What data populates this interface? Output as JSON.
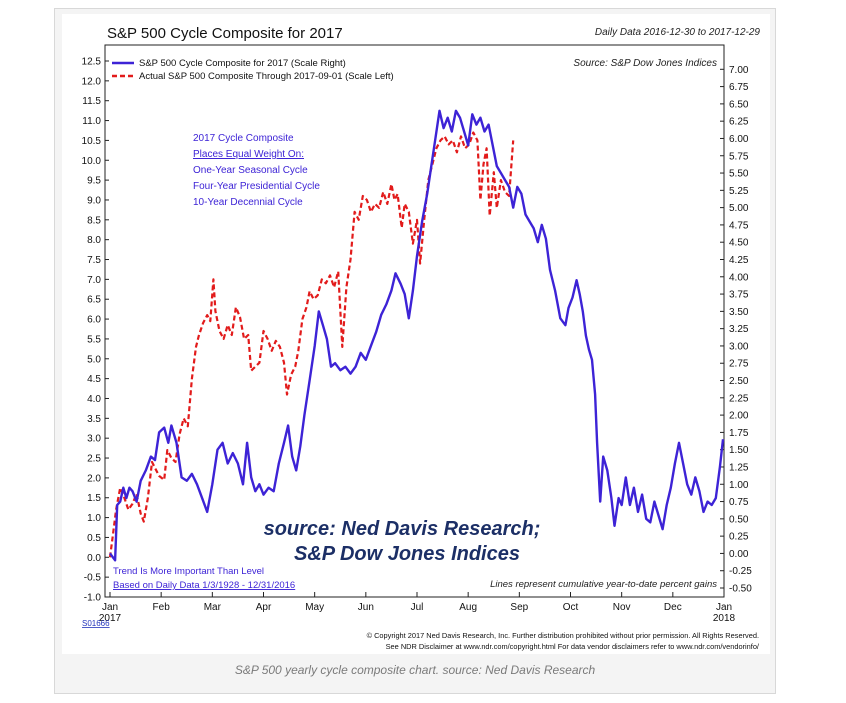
{
  "header": {
    "title": "S&P 500 Cycle Composite for 2017",
    "daily_data": "Daily Data 2016-12-30 to 2017-12-29",
    "source": "Source:   S&P Dow Jones Indices"
  },
  "cycle_note": {
    "line1": "2017 Cycle Composite",
    "line2": "Places Equal Weight On:",
    "line3": "One-Year Seasonal Cycle",
    "line4": "Four-Year Presidential Cycle",
    "line5": "10-Year Decennial Cycle"
  },
  "watermark": {
    "line1": "source: Ned Davis Research;",
    "line2": "S&P Dow Jones Indices"
  },
  "notes": {
    "trend1": "Trend Is More Important Than Level",
    "trend2": "Based on Daily Data 1/3/1928 - 12/31/2016",
    "lines_note": "Lines represent cumulative year-to-date percent gains"
  },
  "footer": {
    "chart_id": "S01666",
    "copyright": "© Copyright 2017 Ned Davis Research, Inc. Further distribution prohibited without prior permission. All Rights Reserved.",
    "disclaimer": "See NDR Disclaimer at www.ndr.com/copyright.html   For data vendor disclaimers refer to www.ndr.com/vendorinfo/"
  },
  "caption": "S&P 500 yearly cycle composite chart. source: Ned Davis Research",
  "colors": {
    "composite": "#3d23d6",
    "actual": "#e21b1b",
    "note_text": "#3d23d6",
    "watermark": "#1c2f66"
  },
  "chart_data": {
    "type": "line",
    "title": "S&P 500 Cycle Composite for 2017",
    "x_ticks": [
      {
        "label": "Jan",
        "sub": "2017",
        "t": 0
      },
      {
        "label": "Feb",
        "sub": "",
        "t": 1
      },
      {
        "label": "Mar",
        "sub": "",
        "t": 2
      },
      {
        "label": "Apr",
        "sub": "",
        "t": 3
      },
      {
        "label": "May",
        "sub": "",
        "t": 4
      },
      {
        "label": "Jun",
        "sub": "",
        "t": 5
      },
      {
        "label": "Jul",
        "sub": "",
        "t": 6
      },
      {
        "label": "Aug",
        "sub": "",
        "t": 7
      },
      {
        "label": "Sep",
        "sub": "",
        "t": 8
      },
      {
        "label": "Oct",
        "sub": "",
        "t": 9
      },
      {
        "label": "Nov",
        "sub": "",
        "t": 10
      },
      {
        "label": "Dec",
        "sub": "",
        "t": 11
      },
      {
        "label": "Jan",
        "sub": "2018",
        "t": 12
      }
    ],
    "xlim": [
      0,
      12
    ],
    "y_left": {
      "ticks": [
        "-1.0",
        "-0.5",
        "0.0",
        "0.5",
        "1.0",
        "1.5",
        "2.0",
        "2.5",
        "3.0",
        "3.5",
        "4.0",
        "4.5",
        "5.0",
        "5.5",
        "6.0",
        "6.5",
        "7.0",
        "7.5",
        "8.0",
        "8.5",
        "9.0",
        "9.5",
        "10.0",
        "10.5",
        "11.0",
        "11.5",
        "12.0",
        "12.5"
      ],
      "range": [
        -1.0,
        12.5
      ]
    },
    "y_right": {
      "ticks": [
        "-0.50",
        "-0.25",
        "0.00",
        "0.25",
        "0.50",
        "0.75",
        "1.00",
        "1.25",
        "1.50",
        "1.75",
        "2.00",
        "2.25",
        "2.50",
        "2.75",
        "3.00",
        "3.25",
        "3.50",
        "3.75",
        "4.00",
        "4.25",
        "4.50",
        "4.75",
        "5.00",
        "5.25",
        "5.50",
        "5.75",
        "6.00",
        "6.25",
        "6.50",
        "6.75",
        "7.00"
      ],
      "range": [
        -0.5,
        7.0
      ],
      "pixel_range": [
        -0.63,
        7.12
      ]
    },
    "legend_position": "top-left",
    "series": [
      {
        "name": "S&P 500 Cycle Composite for 2017 (Scale Right)",
        "axis": "right",
        "style": "solid",
        "points": [
          [
            0.0,
            0.0
          ],
          [
            0.1,
            -0.1
          ],
          [
            0.14,
            0.7
          ],
          [
            0.2,
            0.75
          ],
          [
            0.26,
            0.95
          ],
          [
            0.32,
            0.8
          ],
          [
            0.38,
            0.95
          ],
          [
            0.44,
            0.9
          ],
          [
            0.52,
            0.75
          ],
          [
            0.6,
            1.05
          ],
          [
            0.7,
            1.2
          ],
          [
            0.8,
            1.4
          ],
          [
            0.88,
            1.35
          ],
          [
            0.96,
            1.75
          ],
          [
            1.06,
            1.82
          ],
          [
            1.14,
            1.6
          ],
          [
            1.2,
            1.85
          ],
          [
            1.3,
            1.6
          ],
          [
            1.4,
            1.1
          ],
          [
            1.5,
            1.05
          ],
          [
            1.6,
            1.15
          ],
          [
            1.7,
            1.0
          ],
          [
            1.8,
            0.8
          ],
          [
            1.9,
            0.6
          ],
          [
            2.0,
            1.0
          ],
          [
            2.1,
            1.5
          ],
          [
            2.2,
            1.6
          ],
          [
            2.3,
            1.3
          ],
          [
            2.4,
            1.45
          ],
          [
            2.5,
            1.3
          ],
          [
            2.6,
            1.0
          ],
          [
            2.68,
            1.6
          ],
          [
            2.76,
            1.1
          ],
          [
            2.84,
            0.9
          ],
          [
            2.92,
            1.0
          ],
          [
            3.0,
            0.85
          ],
          [
            3.1,
            0.95
          ],
          [
            3.2,
            0.9
          ],
          [
            3.3,
            1.3
          ],
          [
            3.4,
            1.6
          ],
          [
            3.48,
            1.85
          ],
          [
            3.56,
            1.4
          ],
          [
            3.64,
            1.2
          ],
          [
            3.72,
            1.55
          ],
          [
            3.8,
            2.0
          ],
          [
            3.9,
            2.5
          ],
          [
            4.0,
            3.0
          ],
          [
            4.08,
            3.5
          ],
          [
            4.16,
            3.3
          ],
          [
            4.24,
            3.1
          ],
          [
            4.32,
            2.7
          ],
          [
            4.4,
            2.75
          ],
          [
            4.5,
            2.65
          ],
          [
            4.6,
            2.7
          ],
          [
            4.7,
            2.6
          ],
          [
            4.8,
            2.7
          ],
          [
            4.9,
            2.9
          ],
          [
            5.0,
            2.8
          ],
          [
            5.1,
            3.0
          ],
          [
            5.2,
            3.2
          ],
          [
            5.3,
            3.45
          ],
          [
            5.4,
            3.6
          ],
          [
            5.5,
            3.8
          ],
          [
            5.58,
            4.05
          ],
          [
            5.68,
            3.9
          ],
          [
            5.76,
            3.75
          ],
          [
            5.84,
            3.4
          ],
          [
            5.92,
            3.8
          ],
          [
            6.0,
            4.3
          ],
          [
            6.1,
            4.8
          ],
          [
            6.2,
            5.2
          ],
          [
            6.28,
            5.6
          ],
          [
            6.36,
            6.0
          ],
          [
            6.44,
            6.4
          ],
          [
            6.52,
            6.15
          ],
          [
            6.6,
            6.3
          ],
          [
            6.68,
            6.1
          ],
          [
            6.76,
            6.4
          ],
          [
            6.84,
            6.3
          ],
          [
            6.92,
            6.1
          ],
          [
            7.0,
            5.9
          ],
          [
            7.08,
            6.35
          ],
          [
            7.16,
            6.2
          ],
          [
            7.24,
            6.3
          ],
          [
            7.32,
            6.1
          ],
          [
            7.4,
            6.2
          ],
          [
            7.48,
            5.9
          ],
          [
            7.56,
            5.6
          ],
          [
            7.64,
            5.5
          ],
          [
            7.72,
            5.4
          ],
          [
            7.8,
            5.3
          ],
          [
            7.88,
            5.0
          ],
          [
            7.96,
            5.3
          ],
          [
            8.04,
            5.2
          ],
          [
            8.12,
            4.9
          ],
          [
            8.2,
            4.8
          ],
          [
            8.28,
            4.7
          ],
          [
            8.36,
            4.5
          ],
          [
            8.44,
            4.75
          ],
          [
            8.52,
            4.55
          ],
          [
            8.6,
            4.1
          ],
          [
            8.7,
            3.8
          ],
          [
            8.8,
            3.4
          ],
          [
            8.9,
            3.3
          ],
          [
            8.96,
            3.55
          ],
          [
            9.04,
            3.7
          ],
          [
            9.12,
            3.95
          ],
          [
            9.18,
            3.75
          ],
          [
            9.24,
            3.5
          ],
          [
            9.3,
            3.15
          ],
          [
            9.36,
            2.95
          ],
          [
            9.42,
            2.8
          ],
          [
            9.48,
            2.3
          ],
          [
            9.52,
            1.6
          ],
          [
            9.58,
            0.75
          ],
          [
            9.64,
            1.4
          ],
          [
            9.72,
            1.2
          ],
          [
            9.8,
            0.8
          ],
          [
            9.86,
            0.4
          ],
          [
            9.94,
            0.8
          ],
          [
            10.0,
            0.7
          ],
          [
            10.08,
            1.1
          ],
          [
            10.16,
            0.7
          ],
          [
            10.24,
            0.95
          ],
          [
            10.32,
            0.6
          ],
          [
            10.4,
            0.85
          ],
          [
            10.48,
            0.5
          ],
          [
            10.56,
            0.45
          ],
          [
            10.64,
            0.75
          ],
          [
            10.72,
            0.55
          ],
          [
            10.8,
            0.35
          ],
          [
            10.88,
            0.7
          ],
          [
            10.96,
            0.95
          ],
          [
            11.04,
            1.3
          ],
          [
            11.12,
            1.6
          ],
          [
            11.2,
            1.3
          ],
          [
            11.28,
            1.0
          ],
          [
            11.36,
            0.85
          ],
          [
            11.44,
            1.1
          ],
          [
            11.52,
            0.9
          ],
          [
            11.6,
            0.6
          ],
          [
            11.68,
            0.75
          ],
          [
            11.76,
            0.7
          ],
          [
            11.84,
            0.8
          ],
          [
            11.92,
            1.25
          ],
          [
            11.98,
            1.65
          ]
        ]
      },
      {
        "name": "Actual S&P 500 Composite Through 2017-09-01 (Scale Left)",
        "axis": "left",
        "style": "dashed",
        "points": [
          [
            0.0,
            0.0
          ],
          [
            0.06,
            0.6
          ],
          [
            0.12,
            1.2
          ],
          [
            0.2,
            1.75
          ],
          [
            0.28,
            1.5
          ],
          [
            0.36,
            1.2
          ],
          [
            0.44,
            1.35
          ],
          [
            0.52,
            1.6
          ],
          [
            0.6,
            1.1
          ],
          [
            0.66,
            0.9
          ],
          [
            0.74,
            1.5
          ],
          [
            0.82,
            2.4
          ],
          [
            0.9,
            2.2
          ],
          [
            0.96,
            2.05
          ],
          [
            1.06,
            1.95
          ],
          [
            1.12,
            2.7
          ],
          [
            1.2,
            2.5
          ],
          [
            1.28,
            2.4
          ],
          [
            1.36,
            3.1
          ],
          [
            1.44,
            3.5
          ],
          [
            1.52,
            3.3
          ],
          [
            1.6,
            4.5
          ],
          [
            1.68,
            5.3
          ],
          [
            1.74,
            5.6
          ],
          [
            1.82,
            5.9
          ],
          [
            1.9,
            6.1
          ],
          [
            1.96,
            5.95
          ],
          [
            2.02,
            7.0
          ],
          [
            2.06,
            6.2
          ],
          [
            2.14,
            5.7
          ],
          [
            2.22,
            5.5
          ],
          [
            2.3,
            5.85
          ],
          [
            2.38,
            5.6
          ],
          [
            2.46,
            6.3
          ],
          [
            2.54,
            6.05
          ],
          [
            2.62,
            5.5
          ],
          [
            2.7,
            5.6
          ],
          [
            2.76,
            4.7
          ],
          [
            2.84,
            4.8
          ],
          [
            2.92,
            4.9
          ],
          [
            3.0,
            5.7
          ],
          [
            3.08,
            5.5
          ],
          [
            3.16,
            5.2
          ],
          [
            3.24,
            5.45
          ],
          [
            3.32,
            5.3
          ],
          [
            3.4,
            4.9
          ],
          [
            3.46,
            4.1
          ],
          [
            3.54,
            4.6
          ],
          [
            3.62,
            4.8
          ],
          [
            3.68,
            5.2
          ],
          [
            3.76,
            6.0
          ],
          [
            3.84,
            6.3
          ],
          [
            3.9,
            6.7
          ],
          [
            3.98,
            6.5
          ],
          [
            4.06,
            6.6
          ],
          [
            4.14,
            7.0
          ],
          [
            4.22,
            6.9
          ],
          [
            4.3,
            7.1
          ],
          [
            4.38,
            6.8
          ],
          [
            4.46,
            7.2
          ],
          [
            4.54,
            5.3
          ],
          [
            4.62,
            6.8
          ],
          [
            4.7,
            7.5
          ],
          [
            4.78,
            8.7
          ],
          [
            4.86,
            8.5
          ],
          [
            4.94,
            9.1
          ],
          [
            5.02,
            9.0
          ],
          [
            5.1,
            8.7
          ],
          [
            5.18,
            8.9
          ],
          [
            5.26,
            8.8
          ],
          [
            5.34,
            9.2
          ],
          [
            5.42,
            8.9
          ],
          [
            5.5,
            9.4
          ],
          [
            5.56,
            9.0
          ],
          [
            5.62,
            9.15
          ],
          [
            5.7,
            8.3
          ],
          [
            5.76,
            8.9
          ],
          [
            5.84,
            8.7
          ],
          [
            5.92,
            7.9
          ],
          [
            6.0,
            8.5
          ],
          [
            6.06,
            7.4
          ],
          [
            6.14,
            8.5
          ],
          [
            6.22,
            9.5
          ],
          [
            6.3,
            9.9
          ],
          [
            6.38,
            10.3
          ],
          [
            6.46,
            10.5
          ],
          [
            6.54,
            10.6
          ],
          [
            6.62,
            10.4
          ],
          [
            6.7,
            10.5
          ],
          [
            6.78,
            10.2
          ],
          [
            6.86,
            10.6
          ],
          [
            6.94,
            10.3
          ],
          [
            7.02,
            10.4
          ],
          [
            7.1,
            10.7
          ],
          [
            7.18,
            10.5
          ],
          [
            7.24,
            9.0
          ],
          [
            7.3,
            9.9
          ],
          [
            7.36,
            10.3
          ],
          [
            7.42,
            8.6
          ],
          [
            7.5,
            9.7
          ],
          [
            7.56,
            8.8
          ],
          [
            7.64,
            9.5
          ],
          [
            7.72,
            9.2
          ],
          [
            7.8,
            9.1
          ],
          [
            7.88,
            10.5
          ]
        ]
      }
    ]
  }
}
